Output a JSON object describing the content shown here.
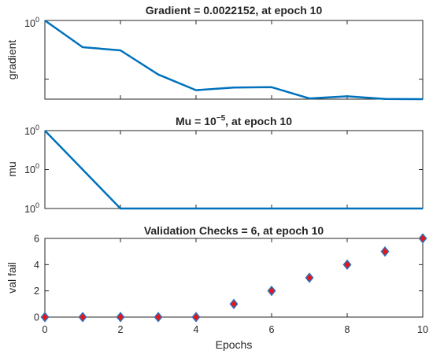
{
  "chart_data": [
    {
      "type": "line",
      "title": "Gradient = 0.0022152, at epoch 10",
      "ylabel": "gradient",
      "xlim": [
        0,
        10
      ],
      "yscale": "log",
      "ytick_labels": [
        {
          "base": "10",
          "exp": "0"
        }
      ],
      "x": [
        0,
        1,
        2,
        3,
        4,
        5,
        6,
        7,
        8,
        9,
        10
      ],
      "values": [
        1.0,
        0.35,
        0.31,
        0.12,
        0.065,
        0.072,
        0.073,
        0.047,
        0.051,
        0.046,
        0.0022152
      ],
      "color": "#0072BD",
      "grid": false
    },
    {
      "type": "line",
      "title": {
        "prefix": "Mu = ",
        "base": "10",
        "exp": "−5",
        "suffix": ", at epoch 10"
      },
      "ylabel": "mu",
      "xlim": [
        0,
        10
      ],
      "yscale": "log",
      "ylim": [
        1e-05,
        0.001
      ],
      "ytick_labels": [
        {
          "base": "10",
          "exp": "0"
        },
        {
          "base": "10",
          "exp": "0"
        },
        {
          "base": "10",
          "exp": "0"
        }
      ],
      "x": [
        0,
        1,
        2,
        3,
        4,
        5,
        6,
        7,
        8,
        9,
        10
      ],
      "values": [
        0.001,
        0.0001,
        1e-05,
        1e-05,
        1e-05,
        1e-05,
        1e-05,
        1e-05,
        1e-05,
        1e-05,
        1e-05
      ],
      "color": "#0072BD",
      "grid": false
    },
    {
      "type": "scatter",
      "title": "Validation Checks = 6, at epoch 10",
      "ylabel": "val fail",
      "xlabel": "Epochs",
      "xlim": [
        0,
        10
      ],
      "ylim": [
        0,
        6
      ],
      "xticks": [
        0,
        2,
        4,
        6,
        8,
        10
      ],
      "yticks": [
        0,
        2,
        4,
        6
      ],
      "x": [
        0,
        1,
        2,
        3,
        4,
        5,
        6,
        7,
        8,
        9,
        10
      ],
      "values": [
        0,
        0,
        0,
        0,
        0,
        1,
        2,
        3,
        4,
        5,
        6
      ],
      "marker": "diamond",
      "marker_face": "#E8141B",
      "marker_edge": "#2F6FB5",
      "grid": false
    }
  ]
}
